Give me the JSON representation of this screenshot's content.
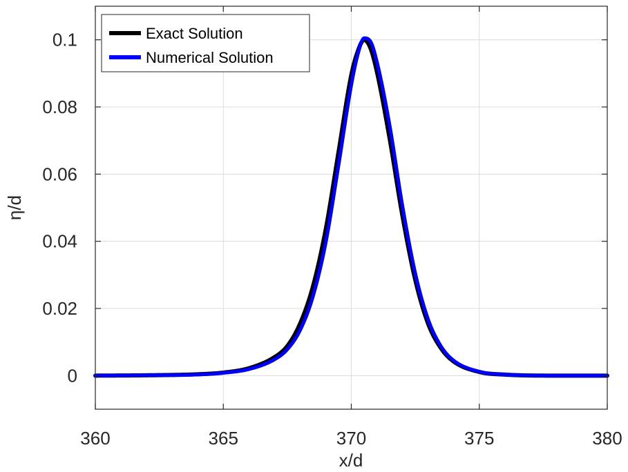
{
  "chart_data": {
    "type": "line",
    "title": "",
    "xlabel": "x/d",
    "ylabel": "η/d",
    "xlim": [
      360,
      380
    ],
    "ylim": [
      -0.01,
      0.11
    ],
    "xticks": [
      360,
      365,
      370,
      375,
      380
    ],
    "xtick_labels": [
      "360",
      "365",
      "370",
      "375",
      "380"
    ],
    "yticks": [
      0,
      0.02,
      0.04,
      0.06,
      0.08,
      0.1
    ],
    "ytick_labels": [
      "0",
      "0.02",
      "0.04",
      "0.06",
      "0.08",
      "0.1"
    ],
    "grid": true,
    "legend_position": "top-left",
    "x": [
      360,
      362,
      364,
      365,
      366,
      367,
      367.5,
      368,
      368.5,
      369,
      369.5,
      370,
      370.25,
      370.5,
      370.75,
      371,
      371.5,
      372,
      372.5,
      373,
      373.5,
      374,
      375,
      376,
      378,
      380
    ],
    "series": [
      {
        "name": "Exact Solution",
        "color": "#000000",
        "values": [
          0.0,
          0.0001,
          0.0004,
          0.0009,
          0.0022,
          0.0055,
          0.0088,
          0.0155,
          0.0265,
          0.0435,
          0.0665,
          0.0895,
          0.0965,
          0.1,
          0.0975,
          0.0905,
          0.0705,
          0.0475,
          0.0285,
          0.0155,
          0.0082,
          0.0042,
          0.0011,
          0.0003,
          0.0,
          0.0
        ]
      },
      {
        "name": "Numerical Solution",
        "color": "#0000ff",
        "values": [
          0.0,
          0.0001,
          0.0003,
          0.0008,
          0.0019,
          0.0048,
          0.0078,
          0.0135,
          0.0235,
          0.0395,
          0.0625,
          0.0865,
          0.0955,
          0.1005,
          0.0995,
          0.0935,
          0.0745,
          0.0505,
          0.0305,
          0.0168,
          0.0088,
          0.0045,
          0.0012,
          0.0003,
          0.0,
          0.0
        ]
      }
    ]
  }
}
